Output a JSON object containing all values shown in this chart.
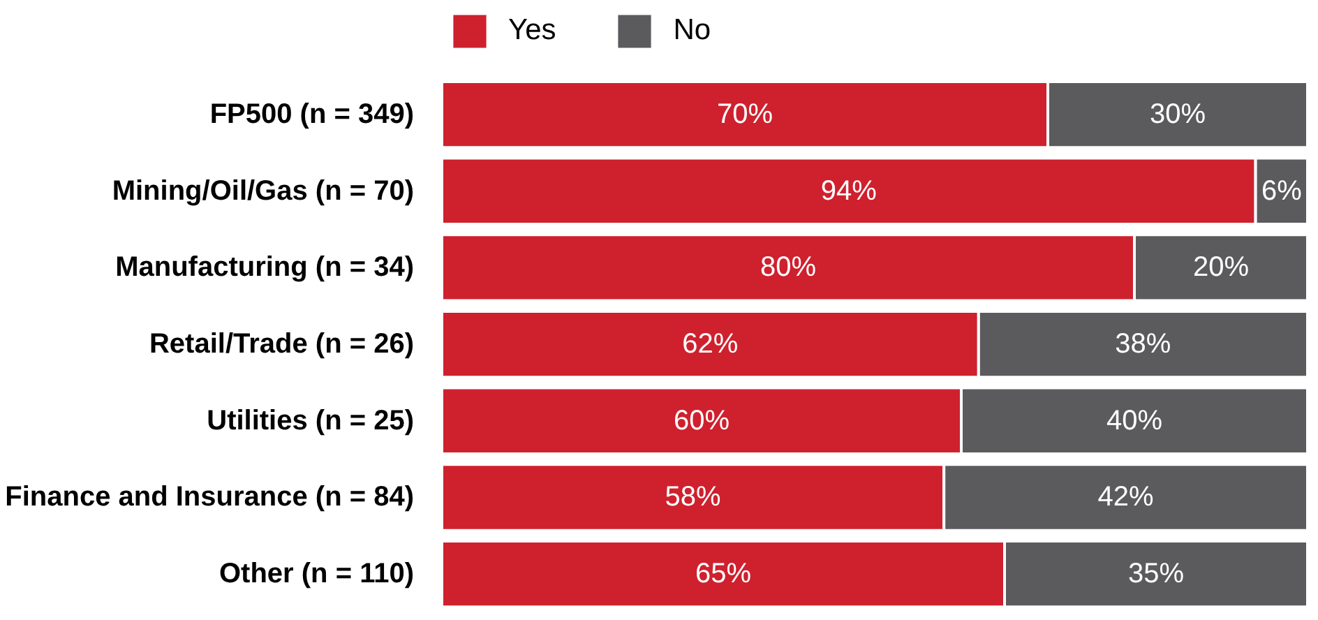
{
  "chart_data": {
    "type": "bar",
    "orientation": "horizontal",
    "stacked": true,
    "categories": [
      "FP500 (n = 349)",
      "Mining/Oil/Gas (n = 70)",
      "Manufacturing (n = 34)",
      "Retail/Trade (n = 26)",
      "Utilities (n = 25)",
      "Finance and Insurance (n = 84)",
      "Other (n = 110)"
    ],
    "series": [
      {
        "name": "Yes",
        "color": "#cf202e",
        "values": [
          70,
          94,
          80,
          62,
          60,
          58,
          65
        ],
        "value_labels": [
          "70%",
          "94%",
          "80%",
          "62%",
          "60%",
          "58%",
          "65%"
        ]
      },
      {
        "name": "No",
        "color": "#5b5b5d",
        "values": [
          30,
          6,
          20,
          38,
          40,
          42,
          35
        ],
        "value_labels": [
          "30%",
          "6%",
          "20%",
          "38%",
          "40%",
          "42%",
          "35%"
        ]
      }
    ],
    "legend": "top",
    "grid": false,
    "tick_labels": "y"
  }
}
